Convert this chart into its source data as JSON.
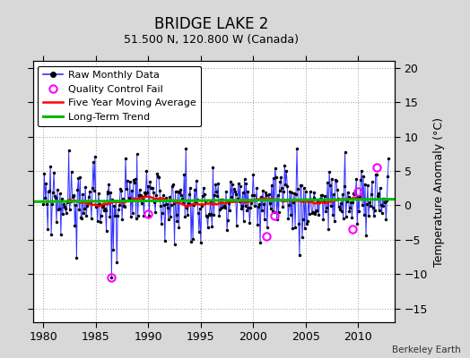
{
  "title": "BRIDGE LAKE 2",
  "subtitle": "51.500 N, 120.800 W (Canada)",
  "credit": "Berkeley Earth",
  "ylabel": "Temperature Anomaly (°C)",
  "xlim": [
    1979.0,
    2013.5
  ],
  "ylim": [
    -17,
    21
  ],
  "yticks": [
    -15,
    -10,
    -5,
    0,
    5,
    10,
    15,
    20
  ],
  "xticks": [
    1980,
    1985,
    1990,
    1995,
    2000,
    2005,
    2010
  ],
  "bg_color": "#d8d8d8",
  "plot_bg_color": "#ffffff",
  "line_color": "#3333ff",
  "marker_color": "#000000",
  "ma_color": "#ff0000",
  "trend_color": "#00bb00",
  "qc_fail_color": "#ff00ff",
  "seed": 99,
  "years_start": 1980,
  "years_end": 2013,
  "qc_positions": [
    [
      1986.5,
      -10.5
    ],
    [
      1990.0,
      -1.2
    ],
    [
      2001.3,
      -4.5
    ],
    [
      2002.0,
      -1.5
    ],
    [
      2009.5,
      -3.5
    ],
    [
      2010.0,
      2.0
    ],
    [
      2011.8,
      5.5
    ]
  ],
  "title_fontsize": 12,
  "subtitle_fontsize": 9,
  "tick_fontsize": 9,
  "legend_fontsize": 8
}
